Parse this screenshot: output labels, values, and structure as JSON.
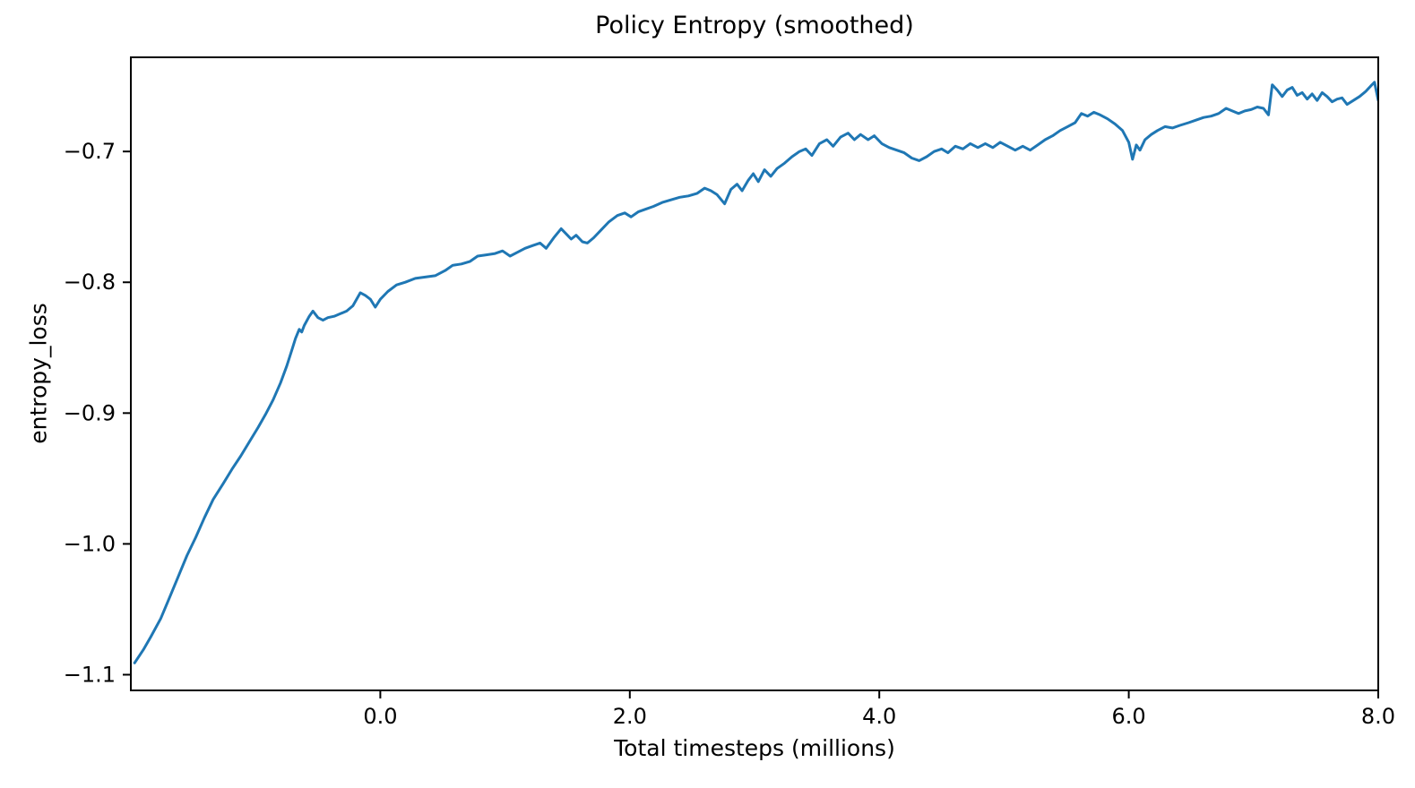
{
  "chart_data": {
    "type": "line",
    "title": "Policy Entropy (smoothed)",
    "xlabel": "Total timesteps (millions)",
    "ylabel": "entropy_loss",
    "xlim": [
      -2.0,
      8.0
    ],
    "ylim": [
      -1.112,
      -0.628
    ],
    "grid": false,
    "line_color": "#1f77b4",
    "axis_color": "#000000",
    "x_ticks": [
      {
        "value": 0.0,
        "label": "0.0"
      },
      {
        "value": 2.0,
        "label": "2.0"
      },
      {
        "value": 4.0,
        "label": "4.0"
      },
      {
        "value": 6.0,
        "label": "6.0"
      },
      {
        "value": 8.0,
        "label": "8.0"
      }
    ],
    "y_ticks": [
      {
        "value": -0.7,
        "label": "−0.7"
      },
      {
        "value": -0.8,
        "label": "−0.8"
      },
      {
        "value": -0.9,
        "label": "−0.9"
      },
      {
        "value": -1.0,
        "label": "−1.0"
      },
      {
        "value": -1.1,
        "label": "−1.1"
      }
    ],
    "series": [
      {
        "name": "entropy_loss",
        "points": [
          [
            -1.97,
            -1.091
          ],
          [
            -1.9,
            -1.081
          ],
          [
            -1.84,
            -1.071
          ],
          [
            -1.76,
            -1.057
          ],
          [
            -1.69,
            -1.041
          ],
          [
            -1.62,
            -1.025
          ],
          [
            -1.55,
            -1.009
          ],
          [
            -1.48,
            -0.995
          ],
          [
            -1.41,
            -0.98
          ],
          [
            -1.34,
            -0.966
          ],
          [
            -1.26,
            -0.954
          ],
          [
            -1.19,
            -0.943
          ],
          [
            -1.12,
            -0.933
          ],
          [
            -1.05,
            -0.922
          ],
          [
            -0.98,
            -0.911
          ],
          [
            -0.92,
            -0.901
          ],
          [
            -0.86,
            -0.89
          ],
          [
            -0.8,
            -0.877
          ],
          [
            -0.75,
            -0.864
          ],
          [
            -0.71,
            -0.852
          ],
          [
            -0.68,
            -0.843
          ],
          [
            -0.65,
            -0.836
          ],
          [
            -0.63,
            -0.838
          ],
          [
            -0.61,
            -0.833
          ],
          [
            -0.57,
            -0.826
          ],
          [
            -0.54,
            -0.822
          ],
          [
            -0.5,
            -0.827
          ],
          [
            -0.46,
            -0.829
          ],
          [
            -0.42,
            -0.827
          ],
          [
            -0.37,
            -0.826
          ],
          [
            -0.32,
            -0.824
          ],
          [
            -0.27,
            -0.822
          ],
          [
            -0.22,
            -0.818
          ],
          [
            -0.16,
            -0.808
          ],
          [
            -0.12,
            -0.81
          ],
          [
            -0.08,
            -0.813
          ],
          [
            -0.04,
            -0.819
          ],
          [
            0.0,
            -0.813
          ],
          [
            0.06,
            -0.807
          ],
          [
            0.13,
            -0.802
          ],
          [
            0.2,
            -0.8
          ],
          [
            0.28,
            -0.797
          ],
          [
            0.36,
            -0.796
          ],
          [
            0.44,
            -0.795
          ],
          [
            0.52,
            -0.791
          ],
          [
            0.58,
            -0.787
          ],
          [
            0.65,
            -0.786
          ],
          [
            0.72,
            -0.784
          ],
          [
            0.78,
            -0.78
          ],
          [
            0.85,
            -0.779
          ],
          [
            0.92,
            -0.778
          ],
          [
            0.98,
            -0.776
          ],
          [
            1.04,
            -0.78
          ],
          [
            1.1,
            -0.777
          ],
          [
            1.16,
            -0.774
          ],
          [
            1.22,
            -0.772
          ],
          [
            1.28,
            -0.77
          ],
          [
            1.33,
            -0.774
          ],
          [
            1.39,
            -0.766
          ],
          [
            1.45,
            -0.759
          ],
          [
            1.49,
            -0.763
          ],
          [
            1.53,
            -0.767
          ],
          [
            1.57,
            -0.764
          ],
          [
            1.62,
            -0.769
          ],
          [
            1.66,
            -0.77
          ],
          [
            1.71,
            -0.766
          ],
          [
            1.77,
            -0.76
          ],
          [
            1.83,
            -0.754
          ],
          [
            1.9,
            -0.749
          ],
          [
            1.96,
            -0.747
          ],
          [
            2.01,
            -0.75
          ],
          [
            2.07,
            -0.746
          ],
          [
            2.13,
            -0.744
          ],
          [
            2.19,
            -0.742
          ],
          [
            2.26,
            -0.739
          ],
          [
            2.33,
            -0.737
          ],
          [
            2.4,
            -0.735
          ],
          [
            2.47,
            -0.734
          ],
          [
            2.54,
            -0.732
          ],
          [
            2.6,
            -0.728
          ],
          [
            2.65,
            -0.73
          ],
          [
            2.7,
            -0.733
          ],
          [
            2.76,
            -0.74
          ],
          [
            2.81,
            -0.729
          ],
          [
            2.86,
            -0.725
          ],
          [
            2.9,
            -0.73
          ],
          [
            2.95,
            -0.722
          ],
          [
            2.99,
            -0.717
          ],
          [
            3.03,
            -0.723
          ],
          [
            3.08,
            -0.714
          ],
          [
            3.13,
            -0.719
          ],
          [
            3.18,
            -0.713
          ],
          [
            3.24,
            -0.709
          ],
          [
            3.3,
            -0.704
          ],
          [
            3.36,
            -0.7
          ],
          [
            3.41,
            -0.698
          ],
          [
            3.46,
            -0.703
          ],
          [
            3.52,
            -0.694
          ],
          [
            3.58,
            -0.691
          ],
          [
            3.63,
            -0.696
          ],
          [
            3.69,
            -0.689
          ],
          [
            3.75,
            -0.686
          ],
          [
            3.8,
            -0.691
          ],
          [
            3.85,
            -0.687
          ],
          [
            3.91,
            -0.691
          ],
          [
            3.96,
            -0.688
          ],
          [
            4.02,
            -0.694
          ],
          [
            4.08,
            -0.697
          ],
          [
            4.14,
            -0.699
          ],
          [
            4.2,
            -0.701
          ],
          [
            4.26,
            -0.705
          ],
          [
            4.32,
            -0.707
          ],
          [
            4.38,
            -0.704
          ],
          [
            4.44,
            -0.7
          ],
          [
            4.5,
            -0.698
          ],
          [
            4.55,
            -0.701
          ],
          [
            4.61,
            -0.696
          ],
          [
            4.67,
            -0.698
          ],
          [
            4.73,
            -0.694
          ],
          [
            4.79,
            -0.697
          ],
          [
            4.85,
            -0.694
          ],
          [
            4.91,
            -0.697
          ],
          [
            4.97,
            -0.693
          ],
          [
            5.03,
            -0.696
          ],
          [
            5.09,
            -0.699
          ],
          [
            5.15,
            -0.696
          ],
          [
            5.21,
            -0.699
          ],
          [
            5.27,
            -0.695
          ],
          [
            5.33,
            -0.691
          ],
          [
            5.39,
            -0.688
          ],
          [
            5.45,
            -0.684
          ],
          [
            5.51,
            -0.681
          ],
          [
            5.57,
            -0.678
          ],
          [
            5.62,
            -0.671
          ],
          [
            5.67,
            -0.673
          ],
          [
            5.72,
            -0.67
          ],
          [
            5.77,
            -0.672
          ],
          [
            5.83,
            -0.675
          ],
          [
            5.89,
            -0.679
          ],
          [
            5.95,
            -0.684
          ],
          [
            6.0,
            -0.693
          ],
          [
            6.03,
            -0.706
          ],
          [
            6.06,
            -0.695
          ],
          [
            6.09,
            -0.699
          ],
          [
            6.13,
            -0.691
          ],
          [
            6.18,
            -0.687
          ],
          [
            6.23,
            -0.684
          ],
          [
            6.29,
            -0.681
          ],
          [
            6.35,
            -0.682
          ],
          [
            6.41,
            -0.68
          ],
          [
            6.48,
            -0.678
          ],
          [
            6.54,
            -0.676
          ],
          [
            6.6,
            -0.674
          ],
          [
            6.66,
            -0.673
          ],
          [
            6.72,
            -0.671
          ],
          [
            6.78,
            -0.667
          ],
          [
            6.83,
            -0.669
          ],
          [
            6.88,
            -0.671
          ],
          [
            6.93,
            -0.669
          ],
          [
            6.98,
            -0.668
          ],
          [
            7.03,
            -0.666
          ],
          [
            7.08,
            -0.667
          ],
          [
            7.12,
            -0.672
          ],
          [
            7.15,
            -0.649
          ],
          [
            7.19,
            -0.653
          ],
          [
            7.23,
            -0.658
          ],
          [
            7.27,
            -0.653
          ],
          [
            7.31,
            -0.651
          ],
          [
            7.35,
            -0.657
          ],
          [
            7.39,
            -0.655
          ],
          [
            7.43,
            -0.66
          ],
          [
            7.47,
            -0.656
          ],
          [
            7.51,
            -0.661
          ],
          [
            7.55,
            -0.655
          ],
          [
            7.59,
            -0.658
          ],
          [
            7.63,
            -0.662
          ],
          [
            7.67,
            -0.66
          ],
          [
            7.71,
            -0.659
          ],
          [
            7.75,
            -0.664
          ],
          [
            7.8,
            -0.661
          ],
          [
            7.85,
            -0.658
          ],
          [
            7.9,
            -0.654
          ],
          [
            7.94,
            -0.65
          ],
          [
            7.97,
            -0.647
          ],
          [
            8.0,
            -0.661
          ]
        ]
      }
    ]
  }
}
